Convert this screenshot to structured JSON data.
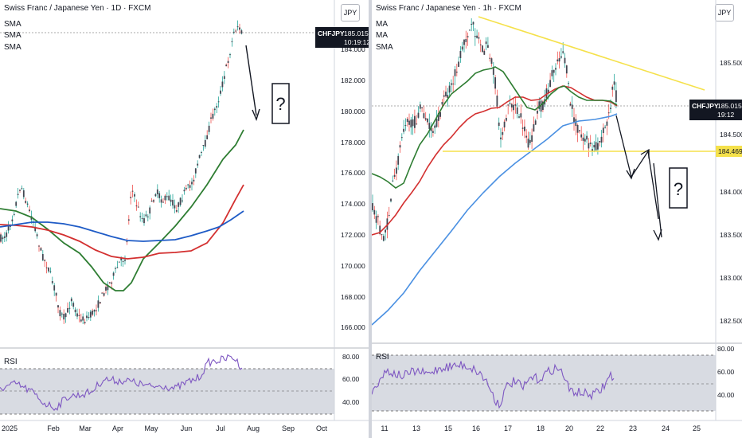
{
  "left_chart": {
    "title": "Swiss Franc / Japanese Yen · 1D · FXCM",
    "indicators": [
      "SMA",
      "SMA",
      "SMA"
    ],
    "currency_button": "JPY",
    "price_axis": [
      "184.000",
      "182.000",
      "180.000",
      "178.000",
      "176.000",
      "174.000",
      "172.000",
      "170.000",
      "168.000",
      "166.000"
    ],
    "rsi_label": "RSI",
    "rsi_axis": [
      "80.00",
      "60.00",
      "40.00"
    ],
    "time_axis": [
      "2025",
      "Feb",
      "Mar",
      "Apr",
      "May",
      "Jun",
      "Jul",
      "Aug",
      "Sep",
      "Oct"
    ],
    "price_tag": {
      "symbol": "CHFJPY",
      "price": "185.015",
      "countdown": "10:19:12"
    },
    "annotation": "?"
  },
  "right_chart": {
    "title": "Swiss Franc / Japanese Yen · 1h · FXCM",
    "indicators": [
      "MA",
      "MA",
      "SMA"
    ],
    "currency_button": "JPY",
    "price_axis": [
      "185.500",
      "184.500",
      "184.000",
      "183.500",
      "183.000",
      "182.500"
    ],
    "rsi_label": "RSI",
    "rsi_axis": [
      "80.00",
      "60.00",
      "40.00"
    ],
    "time_axis": [
      "11",
      "13",
      "15",
      "16",
      "17",
      "18",
      "20",
      "22",
      "23",
      "24",
      "25"
    ],
    "price_tag": {
      "symbol": "CHFJPY",
      "price": "185.015",
      "countdown": "19:12"
    },
    "level_tag": "184.469",
    "annotation": "?"
  },
  "colors": {
    "up": "#26a69a",
    "down": "#ef5350",
    "candle_body": "#434651",
    "sma_green": "#2e7d32",
    "sma_red": "#d32f2f",
    "sma_blue": "#1e5bc6",
    "ma_light_blue": "#4a90e2",
    "rsi_line": "#7e57c2",
    "rsi_band": "#d8dbe2",
    "trendline": "#f5e14b",
    "level_tag": "#f5e14b",
    "tag_bg": "#131722"
  }
}
